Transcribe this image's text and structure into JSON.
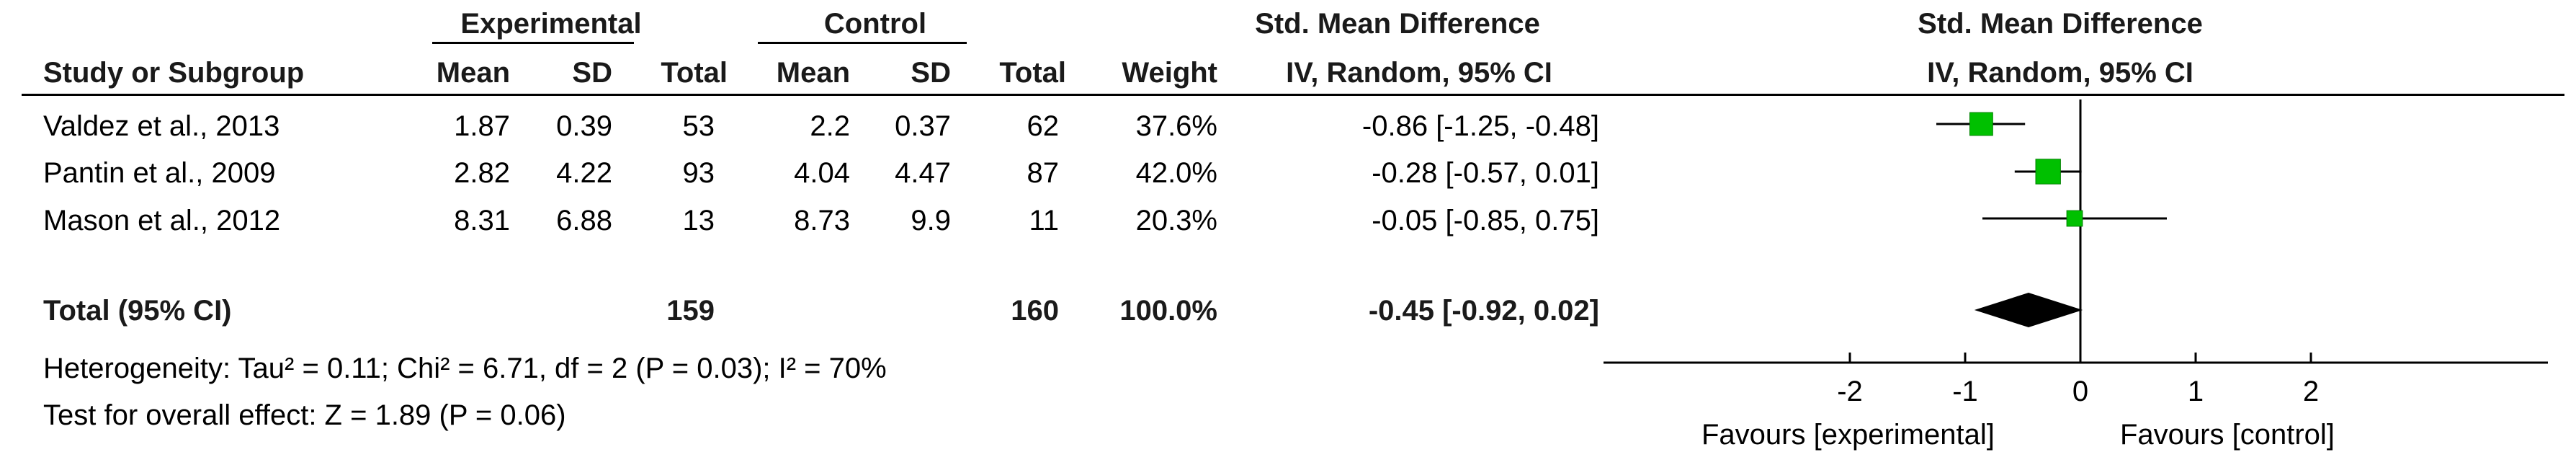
{
  "chart_data": {
    "type": "forest",
    "headers": {
      "experimental": "Experimental",
      "control": "Control",
      "smd_top": "Std. Mean Difference",
      "study": "Study or Subgroup",
      "mean_e": "Mean",
      "sd_e": "SD",
      "total_e": "Total",
      "mean_c": "Mean",
      "sd_c": "SD",
      "total_c": "Total",
      "weight": "Weight",
      "smd_method": "IV, Random, 95% CI",
      "plot_top": "Std. Mean Difference",
      "plot_method": "IV, Random, 95% CI"
    },
    "studies": [
      {
        "name": "Valdez et al., 2013",
        "mean_e": "1.87",
        "sd_e": "0.39",
        "total_e": "53",
        "mean_c": "2.2",
        "sd_c": "0.37",
        "total_c": "62",
        "weight": "37.6%",
        "ci_text": "-0.86 [-1.25, -0.48]",
        "est": -0.86,
        "lo": -1.25,
        "hi": -0.48,
        "w": 37.6
      },
      {
        "name": "Pantin et al., 2009",
        "mean_e": "2.82",
        "sd_e": "4.22",
        "total_e": "93",
        "mean_c": "4.04",
        "sd_c": "4.47",
        "total_c": "87",
        "weight": "42.0%",
        "ci_text": "-0.28 [-0.57, 0.01]",
        "est": -0.28,
        "lo": -0.57,
        "hi": 0.01,
        "w": 42.0
      },
      {
        "name": "Mason et al., 2012",
        "mean_e": "8.31",
        "sd_e": "6.88",
        "total_e": "13",
        "mean_c": "8.73",
        "sd_c": "9.9",
        "total_c": "11",
        "weight": "20.3%",
        "ci_text": "-0.05 [-0.85, 0.75]",
        "est": -0.05,
        "lo": -0.85,
        "hi": 0.75,
        "w": 20.3
      }
    ],
    "total": {
      "label": "Total (95% CI)",
      "total_e": "159",
      "total_c": "160",
      "weight": "100.0%",
      "ci_text": "-0.45 [-0.92, 0.02]",
      "est": -0.45,
      "lo": -0.92,
      "hi": 0.02
    },
    "heterogeneity": "Heterogeneity: Tau² = 0.11; Chi² = 6.71, df = 2 (P = 0.03); I² = 70%",
    "overall_effect": "Test for overall effect: Z = 1.89 (P = 0.06)",
    "x_axis": {
      "ticks": [
        -2,
        -1,
        0,
        1,
        2
      ],
      "tick_labels": [
        "-2",
        "-1",
        "0",
        "1",
        "2"
      ],
      "range": [
        -4,
        4
      ]
    },
    "favours_left": "Favours [experimental]",
    "favours_right": "Favours [control]",
    "colors": {
      "study_marker": "#00c000",
      "study_marker_border": "#008000",
      "diamond": "#000000",
      "lines": "#000000"
    }
  }
}
